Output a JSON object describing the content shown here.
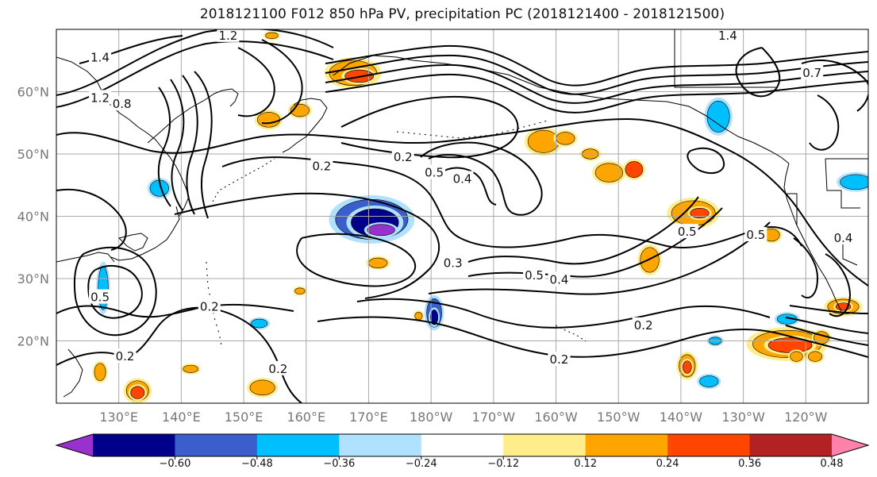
{
  "title": "2018121100 F012 850 hPa PV, precipitation PC (2018121400 - 2018121500)",
  "lat_ticks": [
    {
      "label": "60°N",
      "value": 60
    },
    {
      "label": "50°N",
      "value": 50
    },
    {
      "label": "40°N",
      "value": 40
    },
    {
      "label": "30°N",
      "value": 30
    },
    {
      "label": "20°N",
      "value": 20
    }
  ],
  "lon_ticks": [
    {
      "label": "130°E",
      "value": 130
    },
    {
      "label": "140°E",
      "value": 140
    },
    {
      "label": "150°E",
      "value": 150
    },
    {
      "label": "160°E",
      "value": 160
    },
    {
      "label": "170°E",
      "value": 170
    },
    {
      "label": "180°W",
      "value": 180
    },
    {
      "label": "170°W",
      "value": 190
    },
    {
      "label": "160°W",
      "value": 200
    },
    {
      "label": "150°W",
      "value": 210
    },
    {
      "label": "140°W",
      "value": 220
    },
    {
      "label": "130°W",
      "value": 230
    },
    {
      "label": "120°W",
      "value": 240
    }
  ],
  "extent": {
    "lon_min": 120,
    "lon_max": 250,
    "lat_min": 10,
    "lat_max": 70
  },
  "colorbar": {
    "colors": [
      "#9932cc",
      "#00008b",
      "#3a5fcd",
      "#00bfff",
      "#b0e2ff",
      "#ffffff",
      "#ffec8b",
      "#ffa500",
      "#ff4500",
      "#b22222",
      "#ff82ab"
    ],
    "tick_labels": [
      "−0.60",
      "−0.48",
      "−0.36",
      "−0.24",
      "−0.12",
      "0.12",
      "0.24",
      "0.36",
      "0.48",
      "0.60"
    ]
  },
  "contour_labels": [
    {
      "text": "1.2",
      "lon": 147.5,
      "lat": 69.0
    },
    {
      "text": "1.4",
      "lon": 127.0,
      "lat": 65.5
    },
    {
      "text": "1.4",
      "lon": 227.5,
      "lat": 69.0
    },
    {
      "text": "1.2",
      "lon": 127.0,
      "lat": 59.0
    },
    {
      "text": "0.8",
      "lon": 130.5,
      "lat": 58.0
    },
    {
      "text": "0.2",
      "lon": 175.5,
      "lat": 49.5
    },
    {
      "text": "0.2",
      "lon": 162.5,
      "lat": 48.0
    },
    {
      "text": "0.5",
      "lon": 180.5,
      "lat": 47.0
    },
    {
      "text": "0.4",
      "lon": 185.0,
      "lat": 46.0
    },
    {
      "text": "0.3",
      "lon": 183.5,
      "lat": 32.5
    },
    {
      "text": "0.5",
      "lon": 196.5,
      "lat": 30.5
    },
    {
      "text": "0.4",
      "lon": 200.5,
      "lat": 29.8
    },
    {
      "text": "0.5",
      "lon": 127.0,
      "lat": 27.0
    },
    {
      "text": "0.2",
      "lon": 144.5,
      "lat": 25.5
    },
    {
      "text": "0.2",
      "lon": 214.0,
      "lat": 22.5
    },
    {
      "text": "0.2",
      "lon": 131.0,
      "lat": 17.5
    },
    {
      "text": "0.2",
      "lon": 155.5,
      "lat": 15.5
    },
    {
      "text": "0.2",
      "lon": 200.5,
      "lat": 17.0
    },
    {
      "text": "0.5",
      "lon": 221.0,
      "lat": 37.5
    },
    {
      "text": "0.5",
      "lon": 232.0,
      "lat": 37.0
    },
    {
      "text": "0.4",
      "lon": 246.0,
      "lat": 36.5
    },
    {
      "text": "0.7",
      "lon": 241.0,
      "lat": 63.0
    }
  ],
  "precip_blobs": [
    {
      "lon": 170.5,
      "lat": 39.5,
      "rx": 5.8,
      "ry": 3.2,
      "level": -0.36
    },
    {
      "lon": 171.0,
      "lat": 39.0,
      "rx": 3.8,
      "ry": 2.2,
      "level": -0.48
    },
    {
      "lon": 172.0,
      "lat": 37.8,
      "rx": 2.2,
      "ry": 0.9,
      "level": -0.6
    },
    {
      "lon": 180.5,
      "lat": 24.5,
      "rx": 1.2,
      "ry": 2.3,
      "level": -0.36
    },
    {
      "lon": 180.5,
      "lat": 23.8,
      "rx": 0.6,
      "ry": 1.2,
      "level": -0.48
    },
    {
      "lon": 226.0,
      "lat": 56.0,
      "rx": 1.8,
      "ry": 2.5,
      "level": -0.24
    },
    {
      "lon": 248.0,
      "lat": 45.5,
      "rx": 2.5,
      "ry": 1.2,
      "level": -0.24
    },
    {
      "lon": 136.5,
      "lat": 44.5,
      "rx": 1.5,
      "ry": 1.3,
      "level": -0.24
    },
    {
      "lon": 127.5,
      "lat": 28.5,
      "rx": 0.8,
      "ry": 3.5,
      "level": -0.24
    },
    {
      "lon": 152.5,
      "lat": 22.8,
      "rx": 1.3,
      "ry": 0.7,
      "level": -0.24
    },
    {
      "lon": 224.5,
      "lat": 13.5,
      "rx": 1.5,
      "ry": 0.9,
      "level": -0.24
    },
    {
      "lon": 237.0,
      "lat": 23.5,
      "rx": 1.6,
      "ry": 0.8,
      "level": -0.24
    },
    {
      "lon": 225.5,
      "lat": 20.0,
      "rx": 1.0,
      "ry": 0.6,
      "level": -0.24
    },
    {
      "lon": 167.5,
      "lat": 63.0,
      "rx": 3.8,
      "ry": 2.0,
      "level": 0.24
    },
    {
      "lon": 168.5,
      "lat": 62.5,
      "rx": 2.3,
      "ry": 1.0,
      "level": 0.36
    },
    {
      "lon": 159.0,
      "lat": 57.0,
      "rx": 1.5,
      "ry": 1.0,
      "level": 0.24
    },
    {
      "lon": 154.0,
      "lat": 55.5,
      "rx": 1.8,
      "ry": 1.2,
      "level": 0.24
    },
    {
      "lon": 198.0,
      "lat": 52.0,
      "rx": 2.5,
      "ry": 1.8,
      "level": 0.24
    },
    {
      "lon": 201.5,
      "lat": 52.5,
      "rx": 1.5,
      "ry": 1.0,
      "level": 0.24
    },
    {
      "lon": 205.5,
      "lat": 50.0,
      "rx": 1.3,
      "ry": 0.8,
      "level": 0.24
    },
    {
      "lon": 208.5,
      "lat": 47.0,
      "rx": 2.2,
      "ry": 1.5,
      "level": 0.24
    },
    {
      "lon": 212.5,
      "lat": 47.5,
      "rx": 1.4,
      "ry": 1.3,
      "level": 0.36
    },
    {
      "lon": 222.0,
      "lat": 40.5,
      "rx": 3.5,
      "ry": 2.0,
      "level": 0.24
    },
    {
      "lon": 223.0,
      "lat": 40.5,
      "rx": 1.5,
      "ry": 0.8,
      "level": 0.36
    },
    {
      "lon": 215.0,
      "lat": 33.0,
      "rx": 1.5,
      "ry": 2.0,
      "level": 0.24
    },
    {
      "lon": 237.0,
      "lat": 19.5,
      "rx": 5.5,
      "ry": 2.2,
      "level": 0.24
    },
    {
      "lon": 237.5,
      "lat": 19.3,
      "rx": 3.5,
      "ry": 1.2,
      "level": 0.36
    },
    {
      "lon": 246.0,
      "lat": 25.5,
      "rx": 2.5,
      "ry": 1.2,
      "level": 0.24
    },
    {
      "lon": 246.0,
      "lat": 25.5,
      "rx": 1.2,
      "ry": 0.6,
      "level": 0.36
    },
    {
      "lon": 234.5,
      "lat": 37.0,
      "rx": 1.3,
      "ry": 1.0,
      "level": 0.24
    },
    {
      "lon": 171.5,
      "lat": 32.5,
      "rx": 1.5,
      "ry": 0.8,
      "level": 0.24
    },
    {
      "lon": 133.0,
      "lat": 12.0,
      "rx": 1.8,
      "ry": 1.6,
      "level": 0.24
    },
    {
      "lon": 133.0,
      "lat": 11.7,
      "rx": 1.1,
      "ry": 1.0,
      "level": 0.36
    },
    {
      "lon": 127.0,
      "lat": 15.0,
      "rx": 0.9,
      "ry": 1.4,
      "level": 0.24
    },
    {
      "lon": 153.0,
      "lat": 12.5,
      "rx": 2.0,
      "ry": 1.2,
      "level": 0.24
    },
    {
      "lon": 141.5,
      "lat": 15.5,
      "rx": 1.2,
      "ry": 0.6,
      "level": 0.24
    },
    {
      "lon": 221.0,
      "lat": 16.0,
      "rx": 1.3,
      "ry": 1.8,
      "level": 0.24
    },
    {
      "lon": 221.0,
      "lat": 15.8,
      "rx": 0.7,
      "ry": 1.0,
      "level": 0.36
    },
    {
      "lon": 238.5,
      "lat": 17.5,
      "rx": 1.0,
      "ry": 0.8,
      "level": 0.24
    },
    {
      "lon": 242.5,
      "lat": 20.5,
      "rx": 1.2,
      "ry": 1.0,
      "level": 0.24
    },
    {
      "lon": 241.5,
      "lat": 17.5,
      "rx": 1.1,
      "ry": 0.8,
      "level": 0.24
    },
    {
      "lon": 178.0,
      "lat": 24.0,
      "rx": 0.6,
      "ry": 0.6,
      "level": 0.24
    },
    {
      "lon": 159.0,
      "lat": 28.0,
      "rx": 0.8,
      "ry": 0.5,
      "level": 0.24
    },
    {
      "lon": 154.5,
      "lat": 69.0,
      "rx": 1.0,
      "ry": 0.5,
      "level": 0.24
    }
  ]
}
